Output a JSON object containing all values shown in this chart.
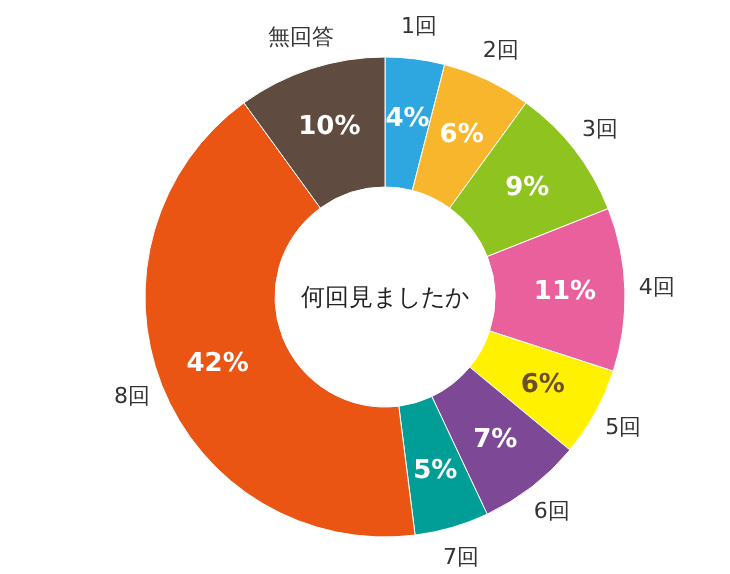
{
  "chart_data": {
    "type": "donut",
    "categories": [
      "1回",
      "2回",
      "3回",
      "4回",
      "5回",
      "6回",
      "7回",
      "8回",
      "無回答"
    ],
    "values": [
      4,
      6,
      9,
      11,
      6,
      7,
      5,
      42,
      10
    ],
    "value_labels": [
      "4%",
      "6%",
      "9%",
      "11%",
      "6%",
      "7%",
      "5%",
      "42%",
      "10%"
    ],
    "colors": [
      "#2ea7e0",
      "#f8b62d",
      "#8fc31f",
      "#e9609c",
      "#fff100",
      "#7d4996",
      "#009e96",
      "#ea5514",
      "#5f4b3f"
    ],
    "annotations": [
      "何回見ましたか"
    ]
  }
}
